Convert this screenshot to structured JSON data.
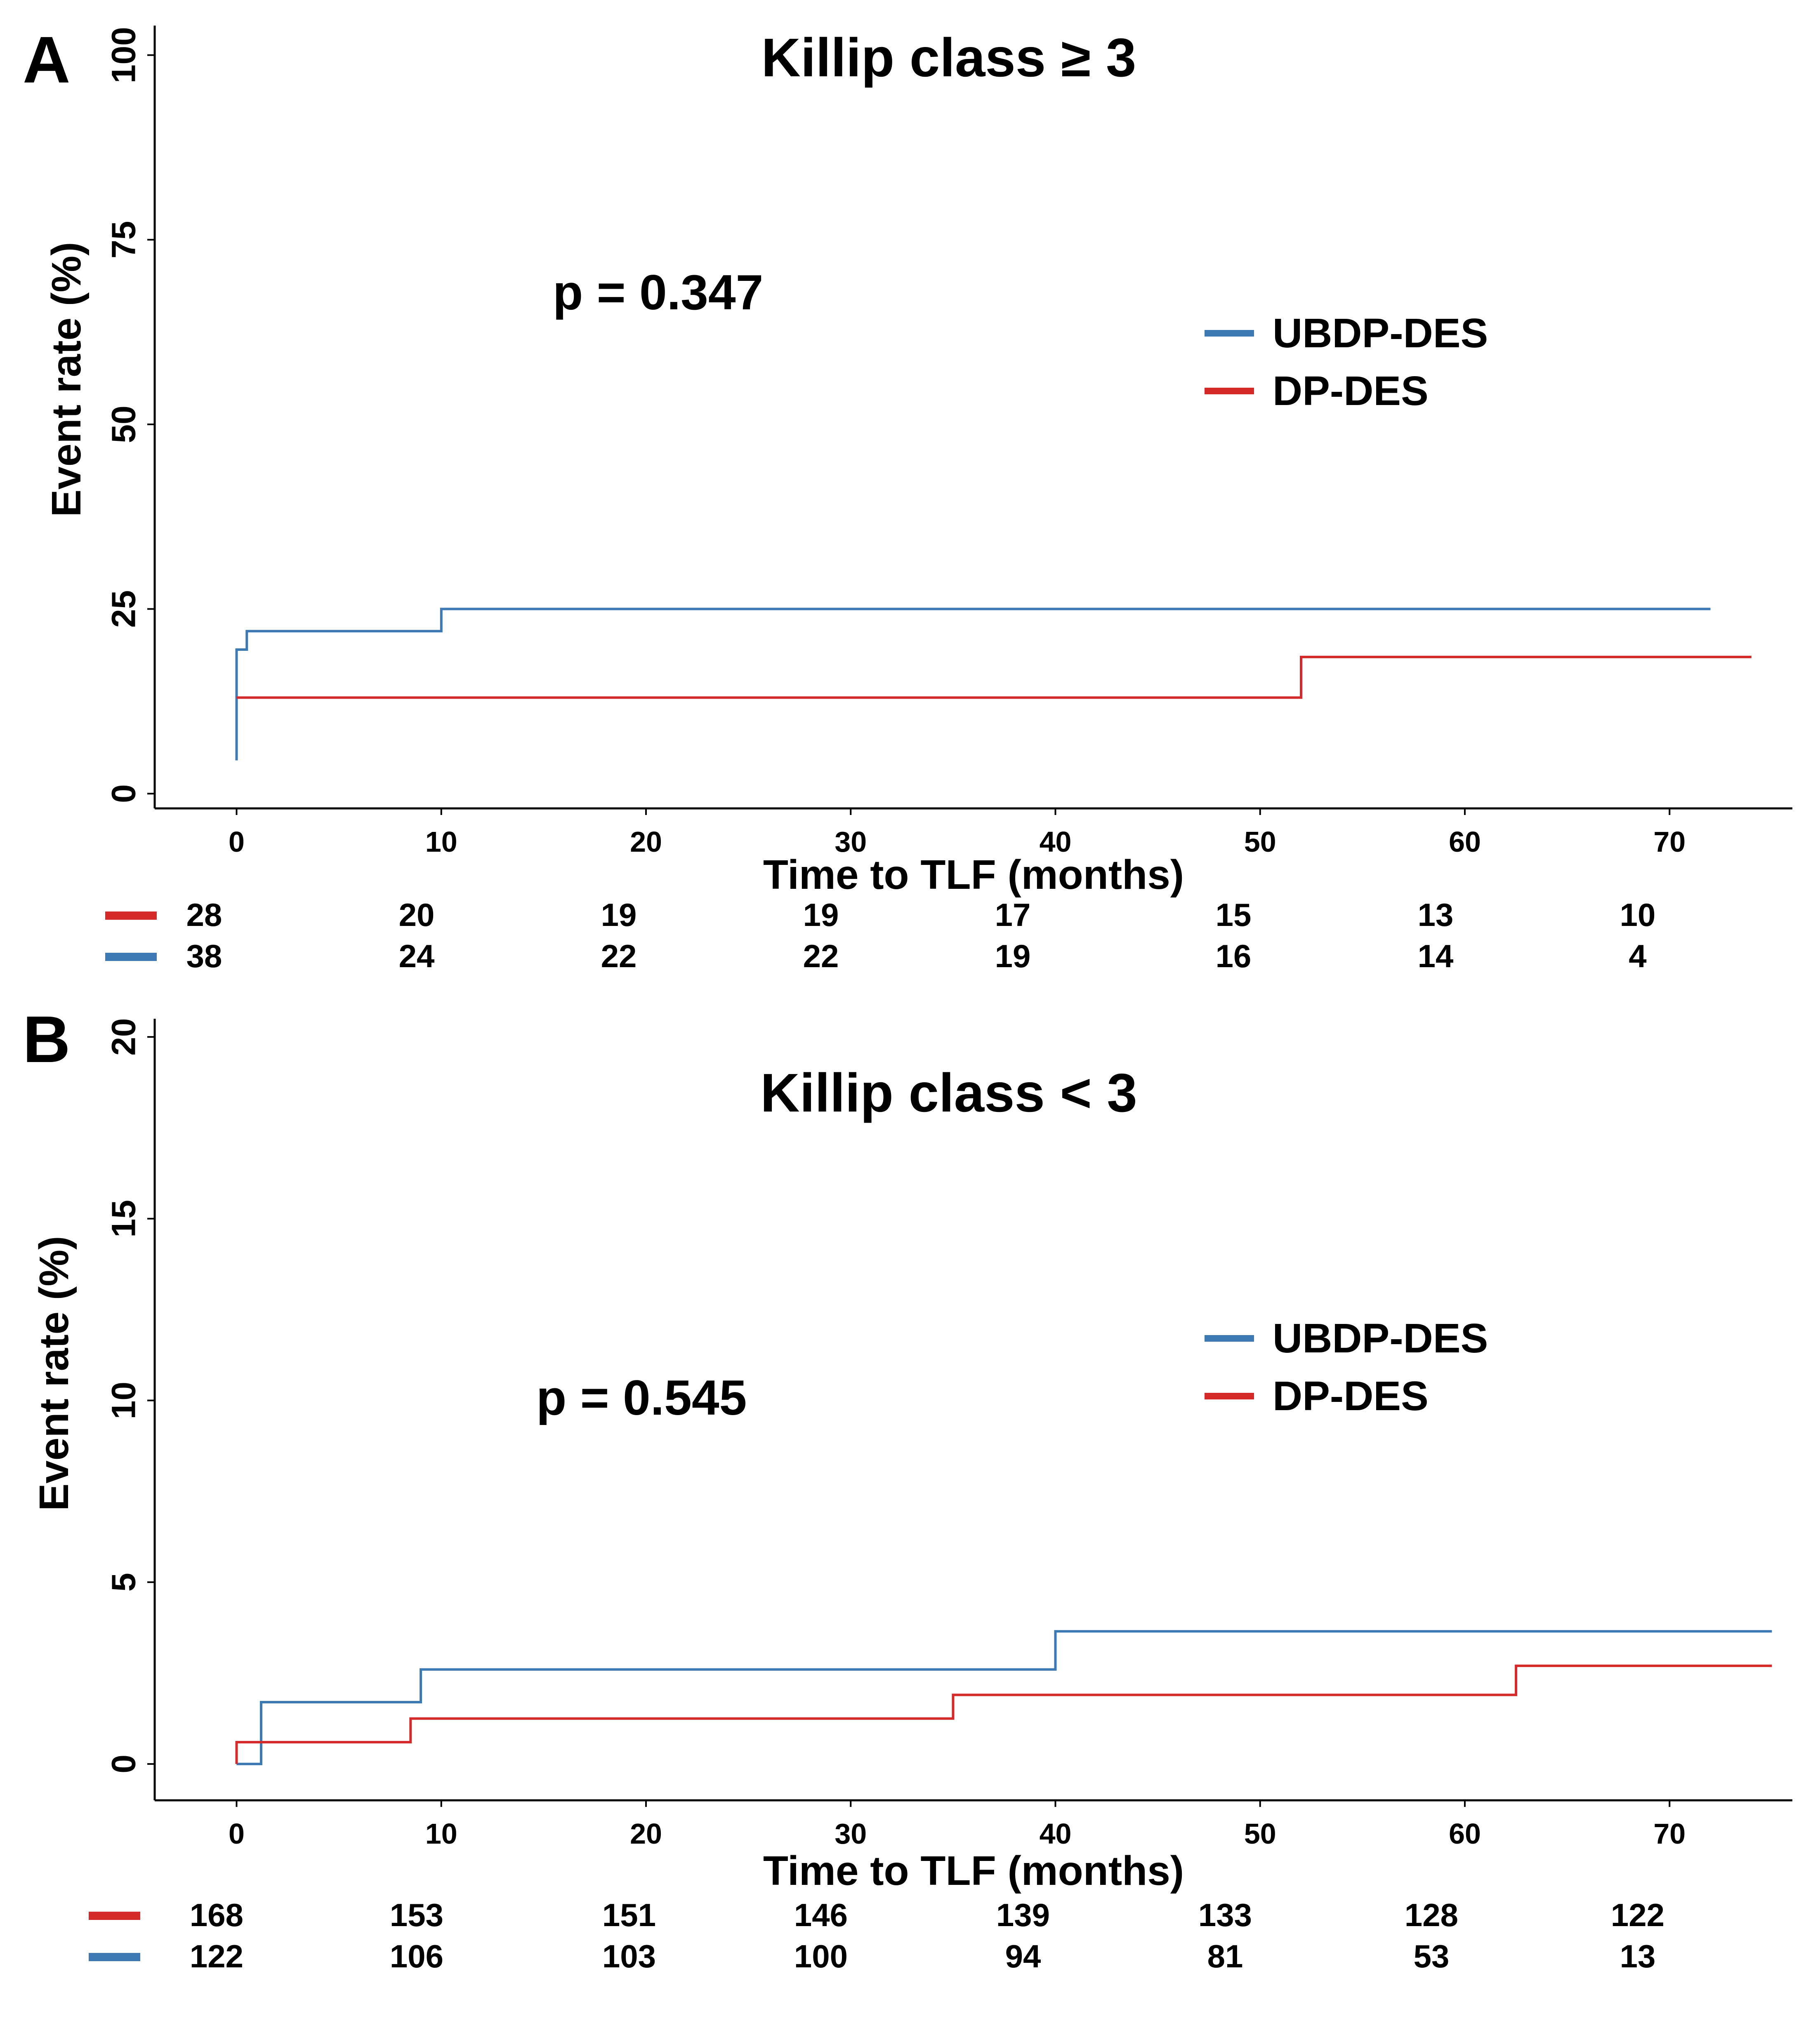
{
  "colors": {
    "ubdp": "#3d7ab3",
    "dp": "#d42a2a",
    "axis": "#000000"
  },
  "panels": [
    {
      "letter": "A",
      "title": "Killip class ≥ 3",
      "p_value": "p = 0.347",
      "legend": [
        {
          "name": "UBDP-DES",
          "series": "ubdp"
        },
        {
          "name": "DP-DES",
          "series": "dp"
        }
      ],
      "risk_table": {
        "dp": [
          "28",
          "20",
          "19",
          "19",
          "17",
          "15",
          "13",
          "10"
        ],
        "ubdp": [
          "38",
          "24",
          "22",
          "22",
          "19",
          "16",
          "14",
          "4"
        ]
      },
      "chart_data": {
        "type": "line",
        "step": true,
        "title": "Killip class ≥ 3",
        "xlabel": "Time to TLF (months)",
        "ylabel": "Event rate (%)",
        "xlim": [
          -4,
          76
        ],
        "ylim": [
          -2,
          104
        ],
        "x_ticks": [
          0,
          10,
          20,
          30,
          40,
          50,
          60,
          70
        ],
        "y_ticks": [
          0,
          25,
          50,
          75,
          100
        ],
        "series": [
          {
            "name": "UBDP-DES",
            "key": "ubdp",
            "points": [
              [
                0,
                4.5
              ],
              [
                0,
                19.5
              ],
              [
                0.5,
                19.5
              ],
              [
                0.5,
                22
              ],
              [
                10,
                22
              ],
              [
                10,
                25
              ],
              [
                72,
                25
              ]
            ]
          },
          {
            "name": "DP-DES",
            "key": "dp",
            "points": [
              [
                0,
                13
              ],
              [
                52,
                13
              ],
              [
                52,
                18.5
              ],
              [
                74,
                18.5
              ]
            ]
          }
        ]
      }
    },
    {
      "letter": "B",
      "title": "Killip class < 3",
      "p_value": "p = 0.545",
      "legend": [
        {
          "name": "UBDP-DES",
          "series": "ubdp"
        },
        {
          "name": "DP-DES",
          "series": "dp"
        }
      ],
      "risk_table": {
        "dp": [
          "168",
          "153",
          "151",
          "146",
          "139",
          "133",
          "128",
          "122"
        ],
        "ubdp": [
          "122",
          "106",
          "103",
          "100",
          "94",
          "81",
          "53",
          "13"
        ]
      },
      "chart_data": {
        "type": "line",
        "step": true,
        "title": "Killip class < 3",
        "xlabel": "Time to TLF (months)",
        "ylabel": "Event rate (%)",
        "xlim": [
          -4,
          76
        ],
        "ylim": [
          -1,
          20.5
        ],
        "x_ticks": [
          0,
          10,
          20,
          30,
          40,
          50,
          60,
          70
        ],
        "y_ticks": [
          0,
          5,
          10,
          15,
          20
        ],
        "series": [
          {
            "name": "UBDP-DES",
            "key": "ubdp",
            "points": [
              [
                0,
                0
              ],
              [
                1.2,
                0
              ],
              [
                1.2,
                1.7
              ],
              [
                9,
                1.7
              ],
              [
                9,
                2.6
              ],
              [
                40,
                2.6
              ],
              [
                40,
                3.65
              ],
              [
                75,
                3.65
              ]
            ]
          },
          {
            "name": "DP-DES",
            "key": "dp",
            "points": [
              [
                0,
                0
              ],
              [
                0,
                0.6
              ],
              [
                8.5,
                0.6
              ],
              [
                8.5,
                1.25
              ],
              [
                35,
                1.25
              ],
              [
                35,
                1.9
              ],
              [
                62.5,
                1.9
              ],
              [
                62.5,
                2.7
              ],
              [
                75,
                2.7
              ]
            ]
          }
        ]
      }
    }
  ]
}
